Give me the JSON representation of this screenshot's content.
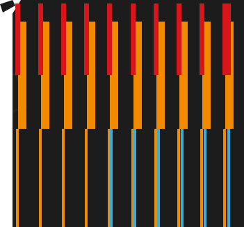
{
  "palette": {
    "background": "#1c1c1c",
    "red": "#d8151a",
    "orange": "#f28a00",
    "blue": "#3aaed8",
    "margin": "#ffffff"
  },
  "stripes": [
    {
      "index": 1,
      "upper": "red",
      "lower_thin": "orange"
    },
    {
      "index": 2,
      "upper": "red",
      "lower_thin": "orange"
    },
    {
      "index": 3,
      "upper": "red",
      "lower_thin": "orange"
    },
    {
      "index": 4,
      "upper": "red",
      "lower_thin": "orange"
    },
    {
      "index": 5,
      "upper": "red",
      "lower_thin": "blue"
    },
    {
      "index": 6,
      "upper": "red",
      "lower_thin": "blue"
    },
    {
      "index": 7,
      "upper": "red",
      "lower_thin": "blue"
    },
    {
      "index": 8,
      "upper": "red",
      "lower_thin": "blue"
    },
    {
      "index": 9,
      "upper": "red",
      "lower_thin": "blue"
    },
    {
      "index": 10,
      "upper": "red",
      "lower_thin": "blue"
    }
  ]
}
